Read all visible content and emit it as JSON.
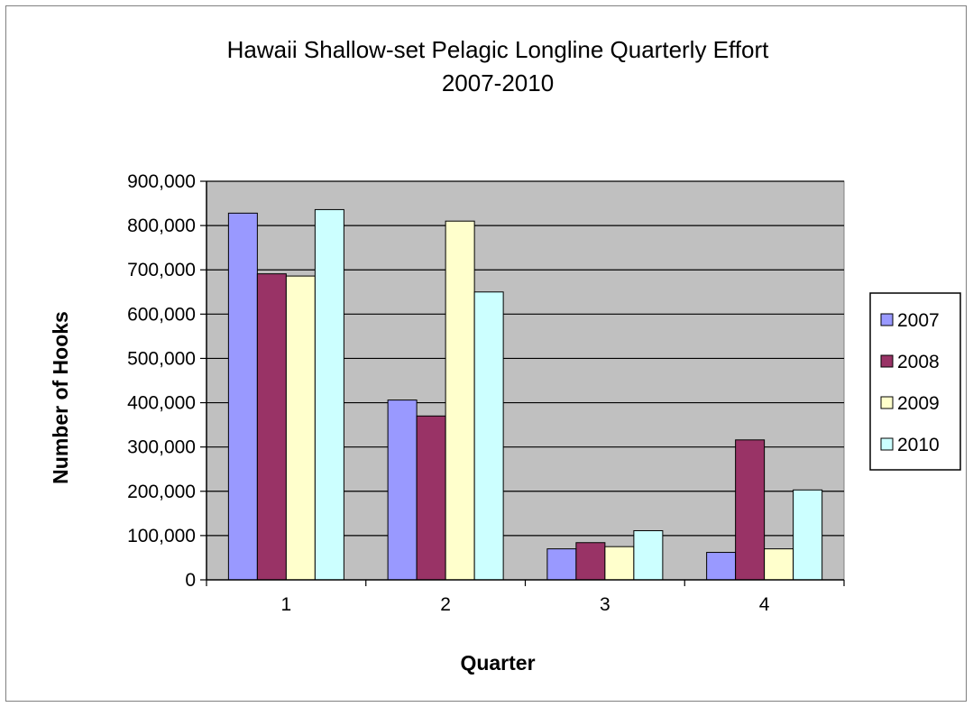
{
  "chart_data": {
    "type": "bar",
    "title": "Hawaii Shallow-set Pelagic Longline Quarterly Effort",
    "subtitle": "2007-2010",
    "xlabel": "Quarter",
    "ylabel": "Number of Hooks",
    "categories": [
      "1",
      "2",
      "3",
      "4"
    ],
    "ylim": [
      0,
      900000
    ],
    "yticks": [
      0,
      100000,
      200000,
      300000,
      400000,
      500000,
      600000,
      700000,
      800000,
      900000
    ],
    "ytick_labels": [
      "0",
      "100,000",
      "200,000",
      "300,000",
      "400,000",
      "500,000",
      "600,000",
      "700,000",
      "800,000",
      "900,000"
    ],
    "grid": true,
    "legend": "right",
    "plot_background": "#c0c0c0",
    "series": [
      {
        "name": "2007",
        "color": "#9999ff",
        "values": [
          828000,
          406000,
          70000,
          62000
        ]
      },
      {
        "name": "2008",
        "color": "#993366",
        "values": [
          691000,
          370000,
          84000,
          316000
        ]
      },
      {
        "name": "2009",
        "color": "#ffffcc",
        "values": [
          686000,
          810000,
          75000,
          70000
        ]
      },
      {
        "name": "2010",
        "color": "#ccffff",
        "values": [
          836000,
          650000,
          111000,
          203000
        ]
      }
    ]
  }
}
